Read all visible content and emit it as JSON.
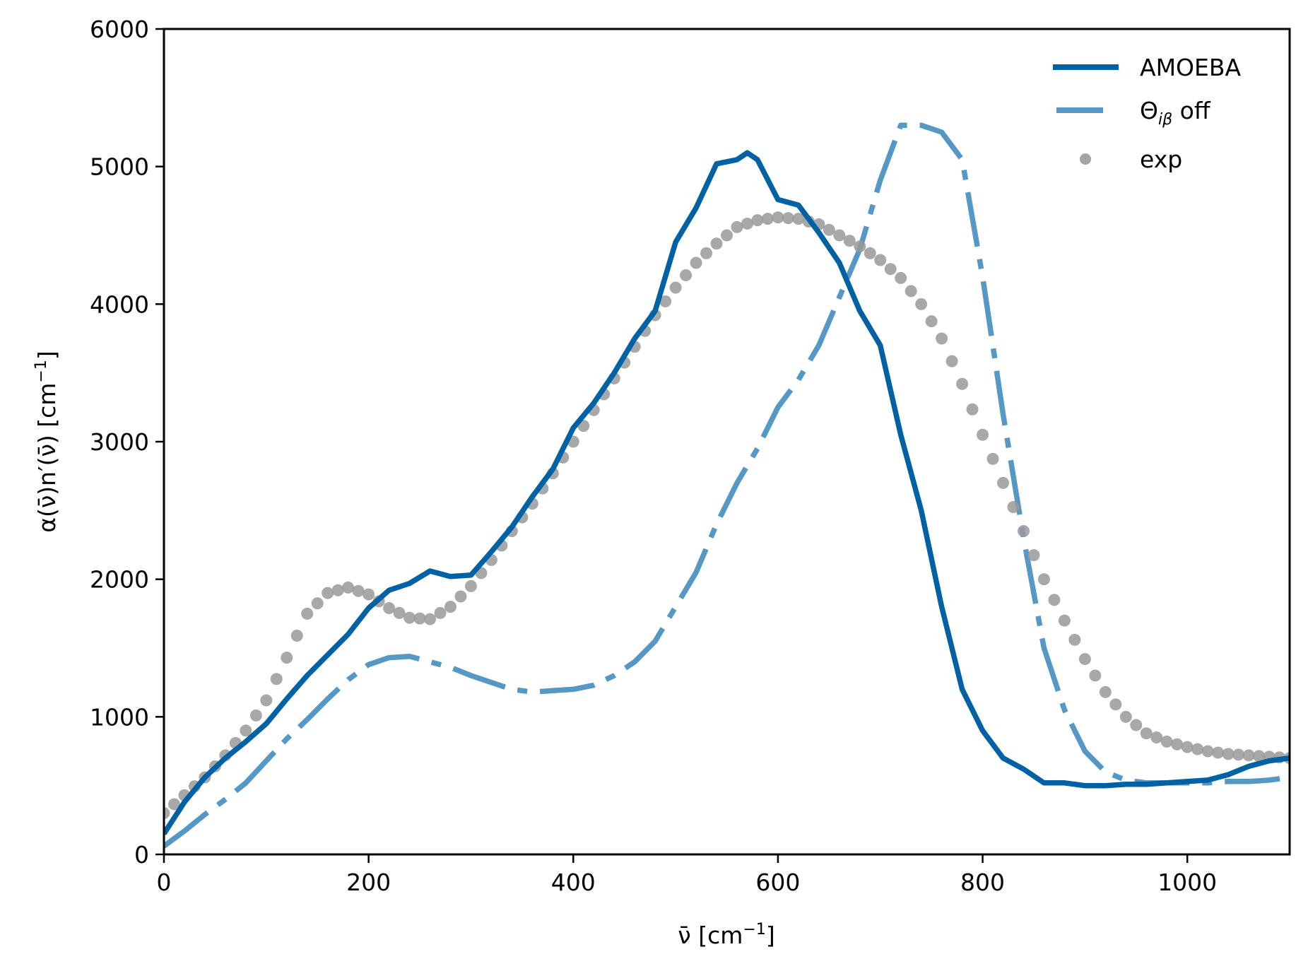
{
  "chart_data": {
    "type": "line",
    "title": "",
    "xlabel": "ν̄ [cm⁻¹]",
    "ylabel": "α(ν̄)n′(ν̄) [cm⁻¹]",
    "xlim": [
      0,
      1100
    ],
    "ylim": [
      0,
      6000
    ],
    "xticks": [
      0,
      200,
      400,
      600,
      800,
      1000
    ],
    "yticks": [
      0,
      1000,
      2000,
      3000,
      4000,
      5000,
      6000
    ],
    "grid": false,
    "legend_position": "upper right",
    "series": [
      {
        "name": "AMOEBA",
        "style": "solid",
        "color": "#0062a5",
        "x": [
          0,
          20,
          40,
          60,
          80,
          100,
          120,
          140,
          160,
          180,
          200,
          220,
          240,
          260,
          280,
          300,
          320,
          340,
          360,
          380,
          400,
          420,
          440,
          460,
          480,
          500,
          520,
          540,
          560,
          570,
          580,
          600,
          620,
          640,
          660,
          680,
          700,
          720,
          740,
          760,
          780,
          800,
          820,
          840,
          860,
          880,
          900,
          920,
          940,
          960,
          980,
          1000,
          1020,
          1040,
          1060,
          1080,
          1100
        ],
        "y": [
          150,
          380,
          560,
          700,
          820,
          950,
          1130,
          1300,
          1450,
          1600,
          1790,
          1920,
          1970,
          2060,
          2020,
          2030,
          2200,
          2380,
          2600,
          2800,
          3100,
          3280,
          3500,
          3750,
          3950,
          4450,
          4700,
          5020,
          5050,
          5100,
          5050,
          4760,
          4720,
          4520,
          4300,
          3950,
          3700,
          3050,
          2500,
          1800,
          1200,
          900,
          700,
          620,
          520,
          520,
          500,
          500,
          510,
          510,
          520,
          530,
          540,
          580,
          640,
          680,
          700
        ]
      },
      {
        "name": "Θ_iβ off",
        "style": "dashdot",
        "color": "#5598c6",
        "x": [
          0,
          20,
          40,
          60,
          80,
          100,
          120,
          140,
          160,
          180,
          200,
          220,
          240,
          260,
          280,
          300,
          320,
          340,
          360,
          380,
          400,
          420,
          440,
          460,
          480,
          500,
          520,
          540,
          560,
          580,
          600,
          620,
          640,
          660,
          680,
          700,
          720,
          740,
          760,
          780,
          800,
          820,
          840,
          860,
          880,
          900,
          920,
          940,
          960,
          980,
          1000,
          1020,
          1040,
          1060,
          1080,
          1100
        ],
        "y": [
          60,
          170,
          290,
          400,
          520,
          680,
          840,
          980,
          1130,
          1270,
          1380,
          1430,
          1440,
          1400,
          1360,
          1300,
          1250,
          1200,
          1180,
          1190,
          1200,
          1230,
          1300,
          1400,
          1550,
          1800,
          2050,
          2400,
          2700,
          2950,
          3250,
          3450,
          3700,
          4050,
          4400,
          4900,
          5300,
          5300,
          5250,
          5050,
          4200,
          3200,
          2300,
          1500,
          1050,
          750,
          600,
          540,
          520,
          520,
          520,
          520,
          530,
          530,
          540,
          560
        ]
      },
      {
        "name": "exp",
        "style": "markers",
        "color": "#999999",
        "x": [
          0,
          20,
          40,
          60,
          80,
          100,
          120,
          140,
          160,
          180,
          200,
          220,
          240,
          260,
          280,
          300,
          320,
          340,
          360,
          380,
          400,
          420,
          440,
          460,
          480,
          500,
          520,
          540,
          560,
          580,
          600,
          620,
          640,
          660,
          680,
          700,
          720,
          740,
          760,
          780,
          800,
          820,
          840,
          860,
          880,
          900,
          920,
          940,
          960,
          980,
          1000,
          1020,
          1040,
          1060,
          1080,
          1100
        ],
        "y": [
          300,
          430,
          560,
          720,
          900,
          1120,
          1430,
          1750,
          1900,
          1940,
          1890,
          1790,
          1720,
          1710,
          1800,
          1950,
          2140,
          2350,
          2550,
          2770,
          3000,
          3230,
          3460,
          3690,
          3920,
          4120,
          4300,
          4440,
          4560,
          4610,
          4630,
          4620,
          4580,
          4500,
          4420,
          4320,
          4190,
          4000,
          3750,
          3420,
          3050,
          2700,
          2350,
          2000,
          1700,
          1420,
          1180,
          1000,
          880,
          820,
          780,
          750,
          730,
          720,
          710,
          700
        ]
      }
    ]
  },
  "axes": {
    "xlabel_main": "ν̄ [cm",
    "xlabel_sup": "−1",
    "xlabel_end": "]",
    "ylabel_main": "α(ν̄)n′(ν̄) [cm",
    "ylabel_sup": "−1",
    "ylabel_end": "]",
    "xtick_labels": [
      "0",
      "200",
      "400",
      "600",
      "800",
      "1000"
    ],
    "ytick_labels": [
      "0",
      "1000",
      "2000",
      "3000",
      "4000",
      "5000",
      "6000"
    ]
  },
  "legend": {
    "items": [
      {
        "label": "AMOEBA"
      },
      {
        "label_main": "Θ",
        "label_sub": "iβ",
        "label_rest": " off"
      },
      {
        "label": "exp"
      }
    ]
  }
}
